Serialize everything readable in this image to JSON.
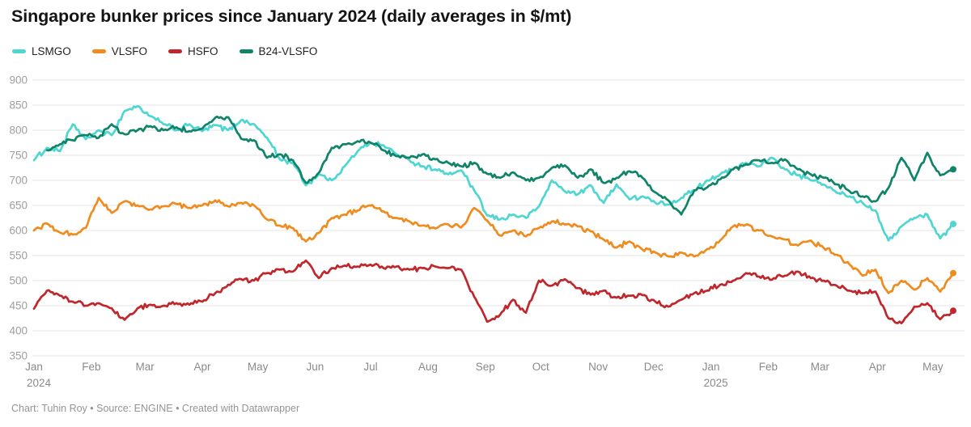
{
  "header": {
    "title": "Singapore bunker prices since January 2024 (daily averages in $/mt)"
  },
  "legend": {
    "items": [
      {
        "id": "lsmgo",
        "label": "LSMGO",
        "color": "#4fd6d2"
      },
      {
        "id": "vlsfo",
        "label": "VLSFO",
        "color": "#ef8c1f"
      },
      {
        "id": "hsfo",
        "label": "HSFO",
        "color": "#c0272d"
      },
      {
        "id": "b24-vlsfo",
        "label": "B24-VLSFO",
        "color": "#0f8468"
      }
    ]
  },
  "chart_data": {
    "type": "line",
    "title": "Singapore bunker prices since January 2024 (daily averages in $/mt)",
    "unit": "$/mt",
    "x_unit": "weeks since 2024-01-01 (values are weekly estimates read from daily curves)",
    "y_axis": {
      "min": 350,
      "max": 900,
      "step": 50,
      "gridlines": true
    },
    "x_ticks": [
      {
        "label": "Jan",
        "sublabel": "2024",
        "week": 0
      },
      {
        "label": "Feb",
        "week": 4.43
      },
      {
        "label": "Mar",
        "week": 8.57
      },
      {
        "label": "Apr",
        "week": 13.0
      },
      {
        "label": "May",
        "week": 17.29
      },
      {
        "label": "Jun",
        "week": 21.71
      },
      {
        "label": "Jul",
        "week": 26.0
      },
      {
        "label": "Aug",
        "week": 30.43
      },
      {
        "label": "Sep",
        "week": 34.86
      },
      {
        "label": "Oct",
        "week": 39.14
      },
      {
        "label": "Nov",
        "week": 43.57
      },
      {
        "label": "Dec",
        "week": 47.86
      },
      {
        "label": "Jan",
        "sublabel": "2025",
        "week": 52.29
      },
      {
        "label": "Feb",
        "week": 56.71
      },
      {
        "label": "Mar",
        "week": 60.71
      },
      {
        "label": "Apr",
        "week": 65.14
      },
      {
        "label": "May",
        "week": 69.43
      }
    ],
    "series": [
      {
        "name": "LSMGO",
        "color": "#4fd6d2",
        "values": [
          740,
          765,
          758,
          812,
          782,
          800,
          790,
          838,
          848,
          828,
          812,
          800,
          812,
          798,
          810,
          800,
          820,
          812,
          785,
          742,
          735,
          690,
          712,
          700,
          728,
          758,
          775,
          770,
          752,
          740,
          728,
          722,
          712,
          720,
          680,
          630,
          622,
          632,
          625,
          648,
          700,
          678,
          672,
          690,
          655,
          692,
          662,
          668,
          655,
          652,
          665,
          680,
          700,
          712,
          722,
          735,
          728,
          745,
          722,
          710,
          700,
          692,
          675,
          668,
          655,
          640,
          580,
          608,
          625,
          632,
          584,
          613
        ]
      },
      {
        "name": "VLSFO",
        "color": "#ef8c1f",
        "values": [
          600,
          614,
          596,
          592,
          605,
          665,
          635,
          658,
          650,
          642,
          648,
          653,
          645,
          650,
          660,
          648,
          655,
          650,
          622,
          610,
          605,
          578,
          595,
          625,
          632,
          640,
          650,
          638,
          625,
          618,
          610,
          604,
          612,
          606,
          645,
          620,
          590,
          600,
          588,
          605,
          618,
          612,
          608,
          598,
          582,
          566,
          578,
          562,
          556,
          548,
          556,
          548,
          563,
          580,
          608,
          612,
          600,
          588,
          582,
          570,
          580,
          565,
          552,
          532,
          510,
          522,
          475,
          500,
          482,
          505,
          478,
          515
        ]
      },
      {
        "name": "HSFO",
        "color": "#c0272d",
        "values": [
          444,
          480,
          470,
          458,
          450,
          455,
          445,
          422,
          445,
          452,
          450,
          455,
          452,
          458,
          475,
          492,
          503,
          500,
          515,
          522,
          518,
          540,
          505,
          525,
          530,
          528,
          532,
          525,
          528,
          522,
          525,
          528,
          525,
          522,
          468,
          418,
          432,
          462,
          436,
          500,
          490,
          503,
          485,
          472,
          480,
          466,
          470,
          471,
          458,
          448,
          462,
          475,
          480,
          492,
          500,
          515,
          508,
          502,
          510,
          518,
          505,
          500,
          490,
          480,
          475,
          478,
          425,
          415,
          448,
          455,
          423,
          440
        ]
      },
      {
        "name": "B24-VLSFO",
        "color": "#0f8468",
        "values": [
          null,
          760,
          772,
          780,
          790,
          785,
          812,
          792,
          800,
          808,
          800,
          806,
          798,
          803,
          825,
          826,
          783,
          780,
          745,
          752,
          740,
          695,
          715,
          765,
          772,
          778,
          775,
          760,
          748,
          745,
          752,
          742,
          735,
          728,
          735,
          713,
          705,
          716,
          700,
          705,
          725,
          730,
          705,
          722,
          695,
          705,
          718,
          705,
          676,
          660,
          632,
          680,
          686,
          702,
          722,
          732,
          740,
          735,
          742,
          722,
          712,
          705,
          692,
          678,
          668,
          658,
          685,
          745,
          700,
          755,
          710,
          722
        ]
      }
    ]
  },
  "footer": {
    "text": "Chart: Tuhin Roy • Source: ENGINE • Created with Datawrapper"
  }
}
